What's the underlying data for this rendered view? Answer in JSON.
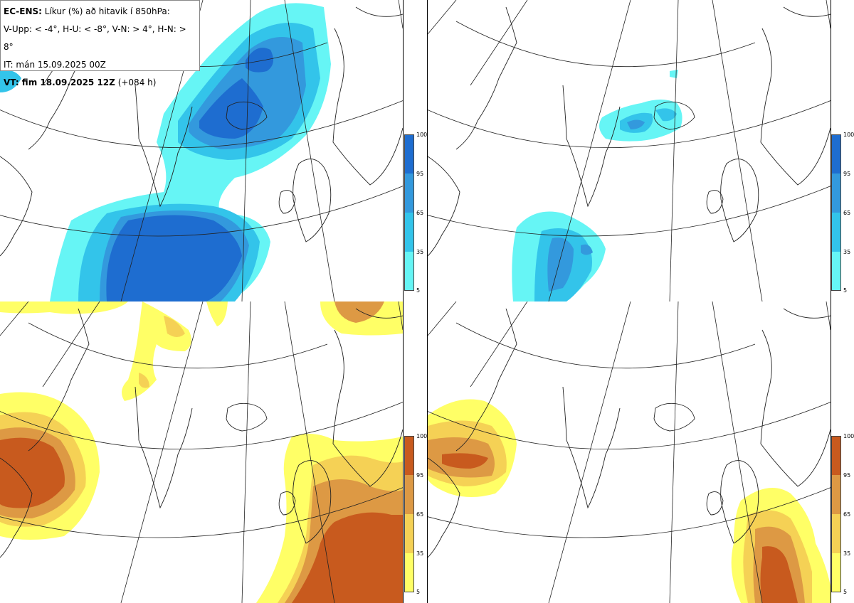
{
  "info": {
    "model": "EC-ENS:",
    "title_rest": " Líkur (%) að hitavik í 850hPa:",
    "thresholds": "V-Upp: < -4°, H-U: < -8°, V-N: > 4°, H-N: > 8°",
    "init": "IT: mán 15.09.2025 00Z",
    "valid_label": "VT: fim 18.09.2025 12Z",
    "valid_lead": " (+084 h)"
  },
  "colorbar_ticks": [
    "100",
    "95",
    "65",
    "35",
    "5"
  ],
  "colors": {
    "cold": [
      "#66f5f5",
      "#33c4ea",
      "#3399dd",
      "#1e6dd0"
    ],
    "warm": [
      "#ffff66",
      "#f5d155",
      "#dd9944",
      "#c85a1e"
    ]
  },
  "panels": [
    {
      "name": "upper-left",
      "label": "V-Upp",
      "palette": "cold"
    },
    {
      "name": "upper-right",
      "label": "H-U",
      "palette": "cold"
    },
    {
      "name": "lower-left",
      "label": "V-N",
      "palette": "warm"
    },
    {
      "name": "lower-right",
      "label": "H-N",
      "palette": "warm"
    }
  ]
}
